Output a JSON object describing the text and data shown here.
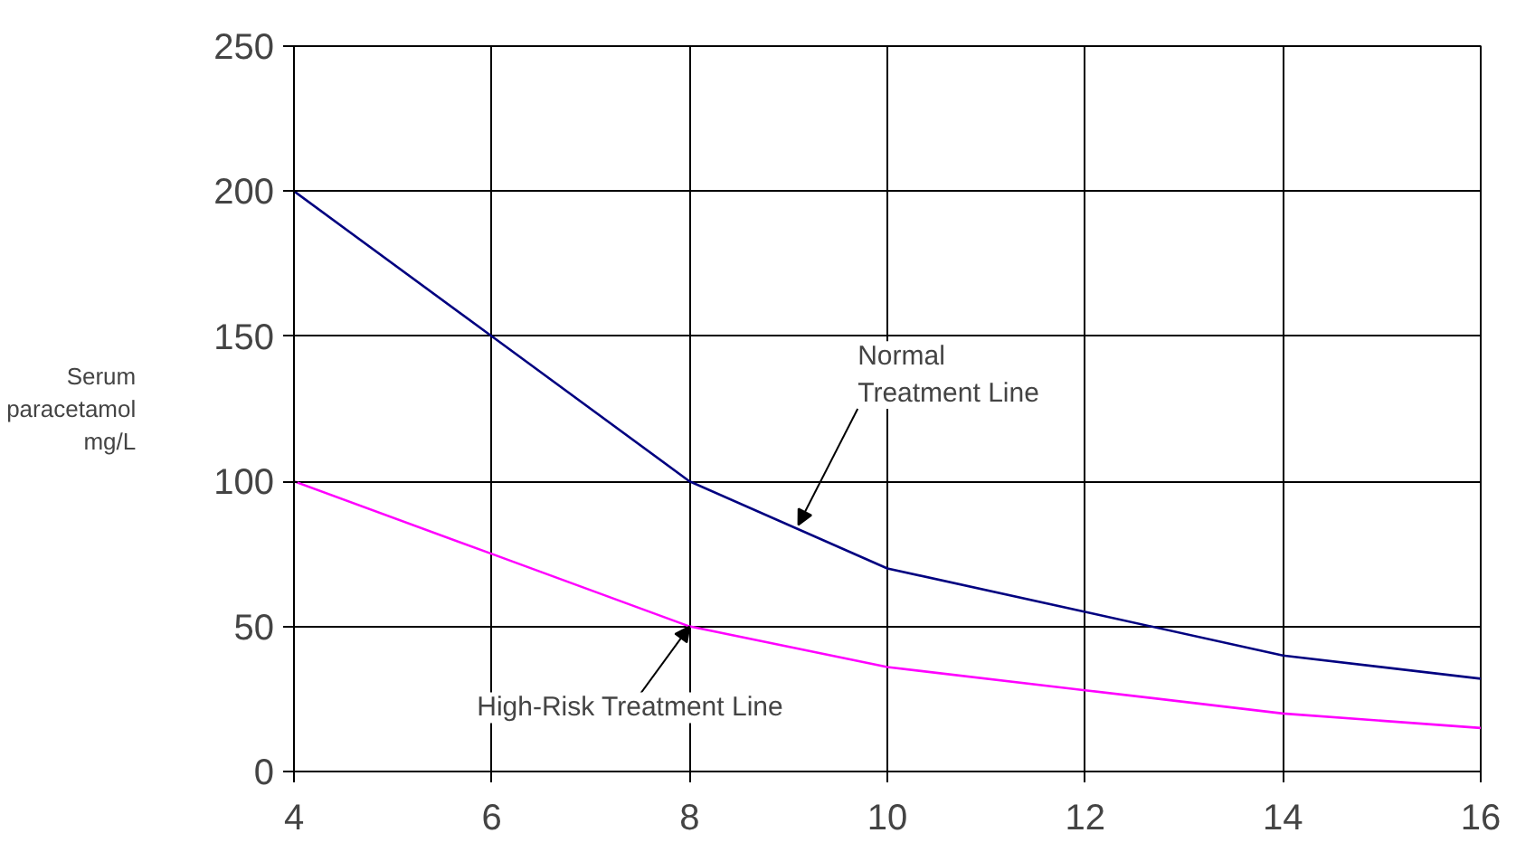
{
  "chart_data": {
    "type": "line",
    "ylabel": "Serum\nparacetamol\nmg/L",
    "x": [
      4,
      6,
      8,
      10,
      12,
      14,
      16
    ],
    "series": [
      {
        "color": "#000080",
        "values": [
          200,
          150,
          100,
          70,
          55,
          40,
          32
        ]
      },
      {
        "color": "#ff00ff",
        "values": [
          100,
          75,
          50,
          36,
          28,
          20,
          15
        ]
      }
    ],
    "xlim": [
      4,
      16
    ],
    "xticks": [
      4,
      6,
      8,
      10,
      12,
      14,
      16
    ],
    "ylim": [
      0,
      250
    ],
    "yticks": [
      0,
      50,
      100,
      150,
      200,
      250
    ],
    "grid": true,
    "marker": "none",
    "line_style": "solid",
    "annotations": [
      {
        "text": "Normal\nTreatment Line",
        "x": 9.1,
        "y": 85
      },
      {
        "text": "High-Risk Treatment Line",
        "x": 8,
        "y": 50
      }
    ]
  }
}
